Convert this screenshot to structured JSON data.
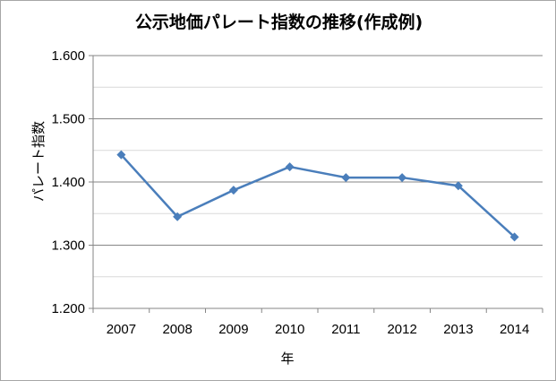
{
  "chart_data": {
    "type": "line",
    "title": "公示地価パレート指数の推移(作成例)",
    "xlabel": "年",
    "ylabel": "パレート指数",
    "categories": [
      "2007",
      "2008",
      "2009",
      "2010",
      "2011",
      "2012",
      "2013",
      "2014"
    ],
    "series": [
      {
        "values": [
          1.443,
          1.345,
          1.387,
          1.424,
          1.407,
          1.407,
          1.394,
          1.313
        ],
        "color": "#4a7ebb",
        "marker": "diamond"
      }
    ],
    "y_ticks": [
      "1.200",
      "1.300",
      "1.400",
      "1.500",
      "1.600"
    ],
    "ylim": [
      1.2,
      1.6
    ],
    "grid": true,
    "legend": "none"
  }
}
